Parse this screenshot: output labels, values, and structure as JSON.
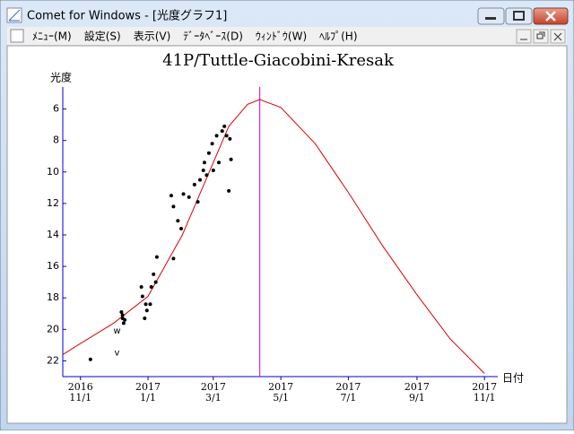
{
  "window": {
    "title": "Comet for Windows - [光度グラフ1]",
    "menu": [
      "ﾒﾆｭｰ(M)",
      "設定(S)",
      "表示(V)",
      "ﾃﾞｰﾀﾍﾞｰｽ(D)",
      "ｳｨﾝﾄﾞｳ(W)",
      "ﾍﾙﾌﾟ(H)"
    ]
  },
  "chart_data": {
    "type": "line",
    "title": "41P/Tuttle-Giacobini-Kresak",
    "y_label": "光度",
    "x_label": "日付",
    "xlim": [
      "2016-10-16",
      "2017-11-13"
    ],
    "xticks": [
      {
        "value": "2016-11-01",
        "label": [
          "2016",
          "11/1"
        ]
      },
      {
        "value": "2017-01-01",
        "label": [
          "2017",
          "1/1"
        ]
      },
      {
        "value": "2017-03-01",
        "label": [
          "2017",
          "3/1"
        ]
      },
      {
        "value": "2017-05-01",
        "label": [
          "2017",
          "5/1"
        ]
      },
      {
        "value": "2017-07-01",
        "label": [
          "2017",
          "7/1"
        ]
      },
      {
        "value": "2017-09-01",
        "label": [
          "2017",
          "9/1"
        ]
      },
      {
        "value": "2017-11-01",
        "label": [
          "2017",
          "11/1"
        ]
      }
    ],
    "ylim": [
      23.0,
      4.6
    ],
    "yticks": [
      6,
      8,
      10,
      12,
      14,
      16,
      18,
      20,
      22
    ],
    "axis_color": "#0000cc",
    "vlines": [
      {
        "x": "2017-04-12",
        "color": "#cc00cc"
      }
    ],
    "series": [
      {
        "type": "line",
        "color": "#dd0000",
        "x": [
          "2016-10-16",
          "2016-11-01",
          "2016-12-01",
          "2017-01-01",
          "2017-02-01",
          "2017-03-01",
          "2017-03-15",
          "2017-04-01",
          "2017-04-12",
          "2017-05-01",
          "2017-06-01",
          "2017-07-01",
          "2017-08-01",
          "2017-09-01",
          "2017-10-01",
          "2017-11-01"
        ],
        "values": [
          21.6,
          20.9,
          19.6,
          17.9,
          14.0,
          9.4,
          7.1,
          5.7,
          5.4,
          5.9,
          8.2,
          11.3,
          14.7,
          17.8,
          20.6,
          22.8
        ]
      },
      {
        "type": "scatter",
        "color": "#000000",
        "x": [
          "2016-11-10",
          "2016-12-08",
          "2016-12-09",
          "2016-12-10",
          "2016-12-11",
          "2016-12-09",
          "2016-12-26",
          "2016-12-27",
          "2016-12-29",
          "2016-12-30",
          "2016-12-31",
          "2017-01-03",
          "2017-01-04",
          "2017-01-06",
          "2017-01-08",
          "2017-01-09",
          "2017-01-22",
          "2017-01-24",
          "2017-01-24",
          "2017-01-28",
          "2017-01-31",
          "2017-02-02",
          "2017-02-07",
          "2017-02-12",
          "2017-02-15",
          "2017-02-17",
          "2017-02-20",
          "2017-02-21",
          "2017-02-23",
          "2017-02-25",
          "2017-02-28",
          "2017-03-01",
          "2017-03-04",
          "2017-03-06",
          "2017-03-09",
          "2017-03-11",
          "2017-03-13",
          "2017-03-16",
          "2017-03-17",
          "2017-03-15"
        ],
        "values": [
          21.9,
          18.9,
          19.3,
          19.6,
          19.4,
          19.1,
          17.3,
          17.9,
          19.3,
          18.4,
          18.8,
          18.4,
          17.3,
          16.5,
          17.0,
          15.4,
          11.5,
          15.5,
          12.2,
          13.1,
          13.6,
          11.4,
          11.6,
          10.8,
          11.9,
          10.5,
          9.9,
          9.4,
          10.2,
          8.8,
          8.2,
          9.9,
          7.7,
          9.4,
          7.4,
          7.1,
          7.7,
          7.9,
          9.2,
          11.2
        ]
      }
    ],
    "annotations": [
      {
        "text": "w",
        "x": "2016-12-04",
        "y": 20.1
      },
      {
        "text": "v",
        "x": "2016-12-04",
        "y": 21.5
      }
    ]
  }
}
